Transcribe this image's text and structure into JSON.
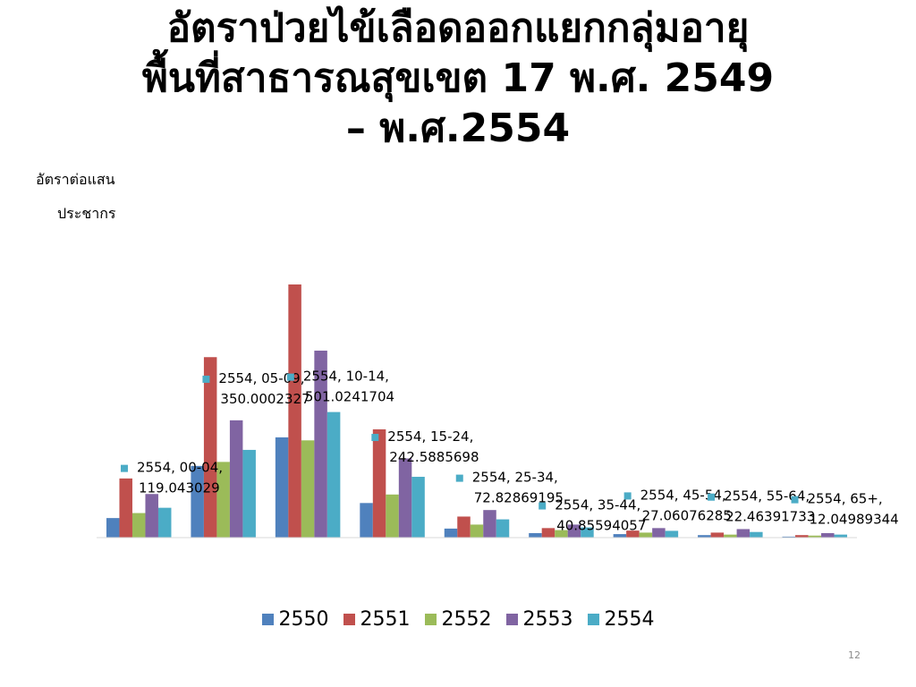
{
  "slide": {
    "title_lines": [
      "อัตราป่วยไข้เลือดออกแยกกลุ่มอายุ",
      "พื้นที่สาธารณสุขเขต 17 พ.ศ. 2549",
      "– พ.ศ.2554"
    ],
    "ylabel_lines": [
      "อัตราต่อแสน",
      "ประชากร"
    ],
    "page_number": "12"
  },
  "chart_data": {
    "type": "bar",
    "categories": [
      "00-04",
      "05-09",
      "10-14",
      "15-24",
      "25-34",
      "35-44",
      "45-54",
      "55-64",
      "65+"
    ],
    "series": [
      {
        "name": "2550",
        "color": "#4F81BD",
        "values": [
          78,
          286,
          400,
          138,
          36,
          18,
          14,
          10,
          4
        ]
      },
      {
        "name": "2551",
        "color": "#C0504D",
        "values": [
          236,
          720,
          1010,
          432,
          84,
          38,
          28,
          20,
          10
        ]
      },
      {
        "name": "2552",
        "color": "#9BBB59",
        "values": [
          98,
          302,
          388,
          172,
          52,
          30,
          20,
          12,
          8
        ]
      },
      {
        "name": "2553",
        "color": "#8064A2",
        "values": [
          174,
          468,
          746,
          316,
          110,
          52,
          38,
          34,
          18
        ]
      },
      {
        "name": "2554",
        "color": "#4BACC6",
        "values": [
          119.043029,
          350.0002327,
          501.0241704,
          242.5885698,
          72.82869195,
          40.85594057,
          27.06076285,
          22.46391733,
          12.04989344
        ]
      }
    ],
    "ylim": [
      0,
      1010
    ],
    "grid": false,
    "legend": "bottom",
    "annotations": [
      {
        "series": "2554",
        "category": "00-04",
        "line1": "2554, 00-04,",
        "line2": "119.043029"
      },
      {
        "series": "2554",
        "category": "05-09",
        "line1": "2554, 05-09,",
        "line2": "350.0002327"
      },
      {
        "series": "2554",
        "category": "10-14",
        "line1": "2554, 10-14,",
        "line2": "501.0241704"
      },
      {
        "series": "2554",
        "category": "15-24",
        "line1": "2554, 15-24,",
        "line2": "242.5885698"
      },
      {
        "series": "2554",
        "category": "25-34",
        "line1": "2554, 25-34,",
        "line2": "72.82869195"
      },
      {
        "series": "2554",
        "category": "35-44",
        "line1": "2554, 35-44,",
        "line2": "40.85594057"
      },
      {
        "series": "2554",
        "category": "45-54",
        "line1": "2554, 45-54,",
        "line2": "27.06076285"
      },
      {
        "series": "2554",
        "category": "55-64",
        "line1": "2554, 55-64,",
        "line2": "22.46391733"
      },
      {
        "series": "2554",
        "category": "65+",
        "line1": "2554, 65+,",
        "line2": "12.04989344"
      }
    ]
  }
}
